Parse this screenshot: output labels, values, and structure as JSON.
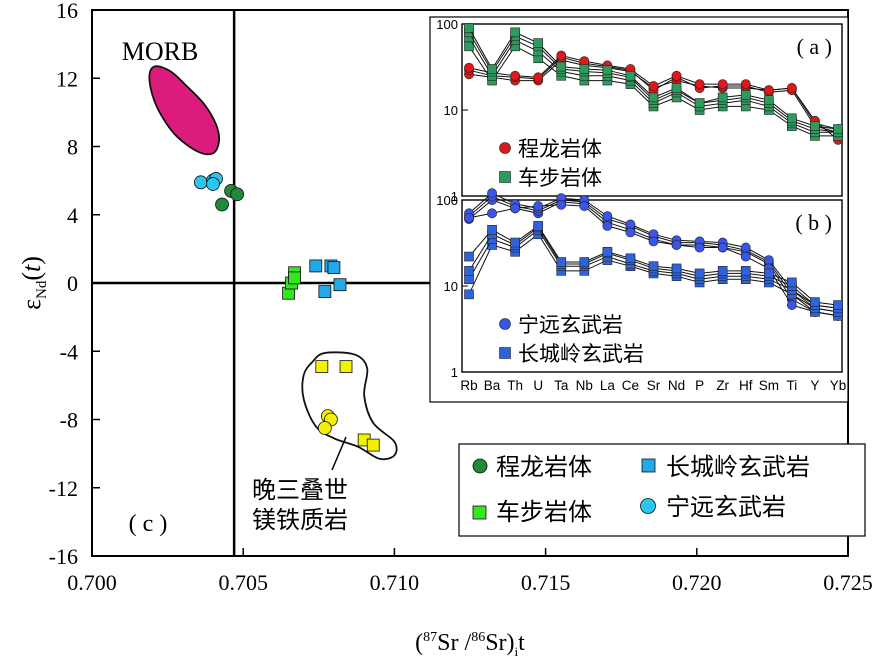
{
  "chart_data": [
    {
      "panel": "(c)",
      "type": "scatter",
      "xlabel_parts": {
        "open": "(",
        "sup1": "87",
        "mid": "Sr /",
        "sup2": "86",
        "close": "Sr)",
        "sub": "i",
        "tail": "t"
      },
      "ylabel_parts": {
        "epsilon": "ε",
        "sub": "Nd",
        "arg": "(",
        "t": "t",
        "argclose": ")"
      },
      "xlim": [
        0.7,
        0.725
      ],
      "ylim": [
        -16,
        16
      ],
      "xticks": [
        "0.700",
        "0.705",
        "0.710",
        "0.715",
        "0.720",
        "0.725"
      ],
      "xtick_values": [
        0.7,
        0.705,
        0.71,
        0.715,
        0.72,
        0.725
      ],
      "yticks": [
        "16",
        "12",
        "8",
        "4",
        "0",
        "-4",
        "-8",
        "-12",
        "-16"
      ],
      "ytick_values": [
        16,
        12,
        8,
        4,
        0,
        -4,
        -8,
        -12,
        -16
      ],
      "reference_lines": {
        "x": 0.7047,
        "y": 0
      },
      "labels": {
        "morb": "MORB",
        "panel": "( c )",
        "late_triassic": [
          "晚三叠世",
          "镁铁质岩"
        ]
      },
      "morb_field": [
        [
          0.7019,
          12.2
        ],
        [
          0.7021,
          12.7
        ],
        [
          0.7026,
          12.4
        ],
        [
          0.7031,
          11.6
        ],
        [
          0.7037,
          10.5
        ],
        [
          0.7041,
          9.3
        ],
        [
          0.7042,
          8.3
        ],
        [
          0.704,
          7.6
        ],
        [
          0.7035,
          7.7
        ],
        [
          0.7028,
          8.6
        ],
        [
          0.7023,
          9.8
        ],
        [
          0.702,
          11.0
        ]
      ],
      "late_triassic_field": [
        [
          0.7073,
          -4.6
        ],
        [
          0.7077,
          -4.1
        ],
        [
          0.7087,
          -4.2
        ],
        [
          0.7091,
          -5.0
        ],
        [
          0.709,
          -6.6
        ],
        [
          0.7093,
          -8.2
        ],
        [
          0.71,
          -9.3
        ],
        [
          0.71,
          -10.1
        ],
        [
          0.7095,
          -10.3
        ],
        [
          0.7088,
          -9.6
        ],
        [
          0.708,
          -9.1
        ],
        [
          0.7074,
          -8.4
        ],
        [
          0.707,
          -6.8
        ],
        [
          0.707,
          -5.4
        ]
      ],
      "series": [
        {
          "name": "程龙岩体",
          "marker": "circle",
          "color": "#1e8a3a",
          "x": [
            0.7043,
            0.7046,
            0.7048
          ],
          "y": [
            4.6,
            5.4,
            5.2
          ]
        },
        {
          "name": "车步岩体",
          "marker": "square",
          "color": "#33e61f",
          "x": [
            0.7065,
            0.7066,
            0.7067,
            0.7067
          ],
          "y": [
            -0.6,
            0.0,
            0.6,
            0.3
          ]
        },
        {
          "name": "长城岭玄武岩",
          "marker": "square",
          "color": "#22a9e6",
          "x": [
            0.7074,
            0.7077,
            0.7079,
            0.708,
            0.7082
          ],
          "y": [
            1.0,
            -0.5,
            1.0,
            0.9,
            -0.1
          ]
        },
        {
          "name": "宁远玄武岩",
          "marker": "circle",
          "color": "#29c6f2",
          "x": [
            0.7036,
            0.704,
            0.7041,
            0.704
          ],
          "y": [
            5.9,
            6.0,
            6.1,
            5.8
          ]
        },
        {
          "name": "晚三叠世 squares",
          "marker": "square",
          "color": "#f2f200",
          "legend": false,
          "x": [
            0.7076,
            0.7084,
            0.709,
            0.7093
          ],
          "y": [
            -4.9,
            -4.9,
            -9.2,
            -9.5
          ]
        },
        {
          "name": "晚三叠世 circles",
          "marker": "circle",
          "color": "#f2f200",
          "legend": false,
          "x": [
            0.7078,
            0.7079,
            0.7077
          ],
          "y": [
            -7.8,
            -8.0,
            -8.5
          ]
        }
      ],
      "legend": {
        "position": "bottom-right",
        "entries": [
          {
            "label": "程龙岩体",
            "marker": "circle",
            "color": "#1e8a3a"
          },
          {
            "label": "长城岭玄武岩",
            "marker": "square",
            "color": "#22a9e6"
          },
          {
            "label": "车步岩体",
            "marker": "square",
            "color": "#33e61f"
          },
          {
            "label": "宁远玄武岩",
            "marker": "circle",
            "color": "#29c6f2"
          }
        ]
      }
    },
    {
      "panel": "(a)",
      "type": "line",
      "categories": [
        "Rb",
        "Ba",
        "Th",
        "U",
        "Ta",
        "Nb",
        "La",
        "Ce",
        "Sr",
        "Nd",
        "P",
        "Zr",
        "Hf",
        "Sm",
        "Ti",
        "Y",
        "Yb"
      ],
      "yscale": "log",
      "ylim": [
        1,
        100
      ],
      "yticks": [
        "100",
        "10",
        "1"
      ],
      "ytick_values": [
        100,
        10,
        1
      ],
      "label": "( a )",
      "series": [
        {
          "name": "程龙岩体",
          "marker": "circle",
          "color": "#e0181a",
          "values": [
            [
              26,
              24,
              22,
              22,
              38,
              33,
              31,
              28,
              18,
              22,
              19,
              18,
              18,
              17,
              18,
              7,
              6
            ],
            [
              29,
              25,
              24,
              23,
              41,
              35,
              32,
              29,
              17,
              24,
              18,
              19,
              19,
              16,
              17,
              6.5,
              5.5
            ],
            [
              31,
              27,
              25,
              24,
              43,
              37,
              33,
              30,
              19,
              25,
              20,
              20,
              20,
              17,
              18,
              7.5,
              4.5
            ]
          ]
        },
        {
          "name": "车步岩体",
          "marker": "square",
          "color": "#2e9a5e",
          "values": [
            [
              55,
              22,
              55,
              40,
              25,
              22,
              22,
              20,
              11,
              14,
              10,
              11,
              11,
              10,
              6.5,
              5,
              5
            ],
            [
              70,
              25,
              65,
              48,
              28,
              25,
              25,
              22,
              12,
              16,
              11,
              12,
              13,
              11,
              7,
              5.5,
              5.5
            ],
            [
              80,
              28,
              72,
              55,
              30,
              28,
              27,
              24,
              13,
              17,
              12,
              13,
              14,
              12,
              7.5,
              6,
              5.5
            ],
            [
              90,
              30,
              80,
              60,
              32,
              30,
              29,
              25,
              14,
              18,
              12,
              14,
              15,
              13,
              8,
              6.5,
              6
            ]
          ]
        }
      ],
      "legend": [
        {
          "label": "程龙岩体",
          "marker": "circle",
          "color": "#e0181a"
        },
        {
          "label": "车步岩体",
          "marker": "square",
          "color": "#2e9a5e"
        }
      ]
    },
    {
      "panel": "(b)",
      "type": "line",
      "categories": [
        "Rb",
        "Ba",
        "Th",
        "U",
        "Ta",
        "Nb",
        "La",
        "Ce",
        "Sr",
        "Nd",
        "P",
        "Zr",
        "Hf",
        "Sm",
        "Ti",
        "Y",
        "Yb"
      ],
      "xtick_labels": [
        "Rb",
        "Ba",
        "Th",
        "U",
        "Ta",
        "Nb",
        "La",
        "Ce",
        "Sr",
        "Nd",
        "P",
        "Zr",
        "Hf",
        "Sm",
        "Ti",
        "Y",
        "Yb"
      ],
      "yscale": "log",
      "ylim": [
        1,
        100
      ],
      "yticks": [
        "100",
        "10",
        "1"
      ],
      "ytick_values": [
        100,
        10,
        1
      ],
      "label": "( b )",
      "series": [
        {
          "name": "宁远玄武岩",
          "marker": "circle",
          "color": "#3a55e8",
          "values": [
            [
              60,
              100,
              80,
              70,
              95,
              90,
              55,
              45,
              35,
              30,
              30,
              28,
              25,
              18,
              7,
              5,
              4.5
            ],
            [
              65,
              110,
              85,
              75,
              100,
              95,
              60,
              50,
              38,
              32,
              32,
              30,
              26,
              19,
              8,
              5.5,
              5
            ],
            [
              70,
              120,
              90,
              80,
              105,
              100,
              65,
              52,
              40,
              34,
              33,
              32,
              28,
              20,
              9,
              6,
              5.5
            ],
            [
              62,
              70,
              80,
              85,
              88,
              85,
              50,
              42,
              33,
              30,
              28,
              28,
              22,
              16,
              6,
              5,
              4.5
            ]
          ]
        },
        {
          "name": "长城岭玄武岩",
          "marker": "square",
          "color": "#2f63dc",
          "values": [
            [
              8,
              30,
              25,
              40,
              15,
              15,
              20,
              17,
              14,
              13,
              11,
              12,
              12,
              11,
              8,
              5,
              4.5
            ],
            [
              12,
              35,
              28,
              45,
              17,
              17,
              22,
              18,
              15,
              14,
              12,
              13,
              13,
              12,
              9,
              5.5,
              5
            ],
            [
              15,
              40,
              30,
              48,
              18,
              18,
              24,
              20,
              16,
              15,
              13,
              14,
              14,
              13,
              10,
              6,
              5.5
            ],
            [
              22,
              45,
              32,
              50,
              19,
              19,
              25,
              21,
              17,
              16,
              14,
              15,
              15,
              14,
              11,
              6.5,
              6
            ]
          ]
        }
      ],
      "legend": [
        {
          "label": "宁远玄武岩",
          "marker": "circle",
          "color": "#3a55e8"
        },
        {
          "label": "长城岭玄武岩",
          "marker": "square",
          "color": "#2f63dc"
        }
      ]
    }
  ]
}
